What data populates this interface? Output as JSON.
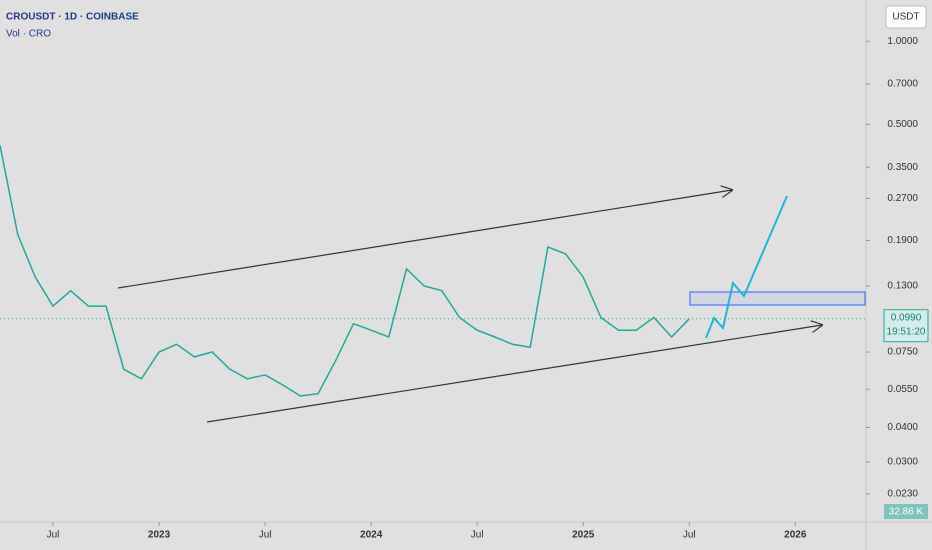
{
  "header": {
    "symbol": "CROUSDT · 1D · COINBASE",
    "indicator": "Vol · CRO",
    "currency_button": "USDT"
  },
  "chart_data": {
    "type": "line",
    "log_scale": true,
    "color": "#26a69a",
    "x": [
      "2022-04",
      "2022-05",
      "2022-06",
      "2022-07",
      "2022-08",
      "2022-09",
      "2022-10",
      "2022-11",
      "2022-12",
      "2023-01",
      "2023-02",
      "2023-03",
      "2023-04",
      "2023-05",
      "2023-06",
      "2023-07",
      "2023-08",
      "2023-09",
      "2023-10",
      "2023-11",
      "2023-12",
      "2024-01",
      "2024-02",
      "2024-03",
      "2024-04",
      "2024-05",
      "2024-06",
      "2024-07",
      "2024-08",
      "2024-09",
      "2024-10",
      "2024-11",
      "2024-12",
      "2025-01",
      "2025-02",
      "2025-03",
      "2025-04",
      "2025-05",
      "2025-06",
      "2025-07"
    ],
    "values": [
      0.42,
      0.2,
      0.14,
      0.11,
      0.125,
      0.11,
      0.11,
      0.065,
      0.06,
      0.075,
      0.08,
      0.072,
      0.075,
      0.065,
      0.06,
      0.062,
      0.057,
      0.052,
      0.053,
      0.07,
      0.095,
      0.09,
      0.085,
      0.15,
      0.13,
      0.125,
      0.1,
      0.09,
      0.085,
      0.08,
      0.078,
      0.18,
      0.17,
      0.14,
      0.1,
      0.09,
      0.09,
      0.1,
      0.085,
      0.099
    ],
    "xlim": [
      "2022-04",
      "2026-05"
    ],
    "xticks": [
      {
        "value": "2022-07",
        "label": "Jul"
      },
      {
        "value": "2023-01",
        "label": "2023"
      },
      {
        "value": "2023-07",
        "label": "Jul"
      },
      {
        "value": "2024-01",
        "label": "2024"
      },
      {
        "value": "2024-07",
        "label": "Jul"
      },
      {
        "value": "2025-01",
        "label": "2025"
      },
      {
        "value": "2025-07",
        "label": "Jul"
      },
      {
        "value": "2026-01",
        "label": "2026"
      }
    ],
    "ylim": [
      0.0185,
      1.41
    ],
    "yticks": [
      {
        "value": 1,
        "label": "1.0000"
      },
      {
        "value": 0.7,
        "label": "0.7000"
      },
      {
        "value": 0.5,
        "label": "0.5000"
      },
      {
        "value": 0.35,
        "label": "0.3500"
      },
      {
        "value": 0.27,
        "label": "0.2700"
      },
      {
        "value": 0.19,
        "label": "0.1900"
      },
      {
        "value": 0.13,
        "label": "0.1300"
      },
      {
        "value": 0.075,
        "label": "0.0750"
      },
      {
        "value": 0.055,
        "label": "0.0550"
      },
      {
        "value": 0.04,
        "label": "0.0400"
      },
      {
        "value": 0.03,
        "label": "0.0300"
      },
      {
        "value": 0.023,
        "label": "0.0230"
      }
    ],
    "last_price": {
      "value": 0.099,
      "label": "0.0990"
    },
    "countdown": "19:51:20",
    "volume_label": "32.86 K"
  }
}
